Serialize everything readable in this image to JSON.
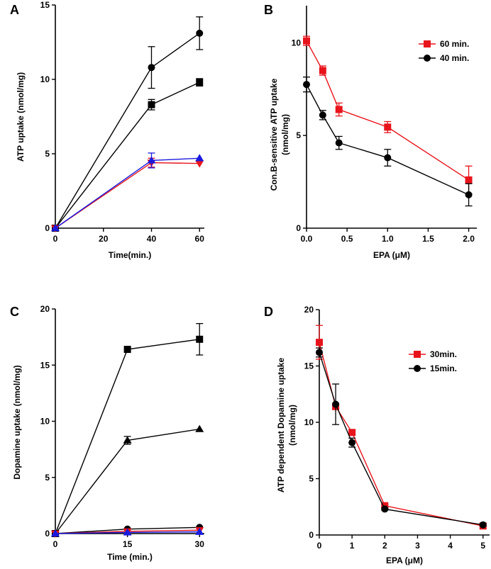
{
  "chart_data": [
    {
      "panel": "A",
      "type": "line",
      "xlabel": "Time(min.)",
      "ylabel": "ATP uptake (nmol/mg)",
      "xlim": [
        0,
        62
      ],
      "ylim": [
        0,
        15
      ],
      "xticks": [
        0,
        20,
        40,
        60
      ],
      "yticks": [
        0,
        5,
        10,
        15
      ],
      "xtick_labels": [
        "0",
        "20",
        "40",
        "60"
      ],
      "ytick_labels": [
        "0",
        "5",
        "10",
        "15"
      ],
      "series": [
        {
          "name": "circle",
          "color": "#000000",
          "marker": "circle",
          "x": [
            0,
            40,
            60
          ],
          "y": [
            0,
            10.8,
            13.1
          ],
          "err": [
            0,
            1.4,
            1.1
          ]
        },
        {
          "name": "square",
          "color": "#000000",
          "marker": "square",
          "x": [
            0,
            40,
            60
          ],
          "y": [
            0,
            8.3,
            9.8
          ],
          "err": [
            0,
            0.35,
            0.25
          ]
        },
        {
          "name": "triangle-down",
          "color": "#e8141b",
          "marker": "triangle-down",
          "x": [
            0,
            40,
            60
          ],
          "y": [
            0,
            4.4,
            4.35
          ],
          "err": [
            0,
            0.3,
            0
          ]
        },
        {
          "name": "triangle",
          "color": "#1a1adf",
          "marker": "triangle",
          "x": [
            0,
            40,
            60
          ],
          "y": [
            0,
            4.55,
            4.7
          ],
          "err": [
            0,
            0.5,
            0
          ]
        }
      ]
    },
    {
      "panel": "B",
      "type": "line",
      "xlabel": "EPA (μM)",
      "ylabel_lines": [
        "Con.B-sensitive ATP uptake",
        "(nmol/mg)"
      ],
      "xlim": [
        0,
        2.1
      ],
      "ylim": [
        0,
        12
      ],
      "xticks": [
        0,
        0.5,
        1.0,
        1.5,
        2.0
      ],
      "yticks": [
        0,
        5,
        10
      ],
      "xtick_labels": [
        "0.0",
        "0.5",
        "1.0",
        "1.5",
        "2.0"
      ],
      "ytick_labels": [
        "0",
        "5",
        "10"
      ],
      "legend": [
        "60 min.",
        "40 min."
      ],
      "series": [
        {
          "name": "60 min.",
          "color": "#e8141b",
          "marker": "square",
          "x": [
            0,
            0.2,
            0.4,
            1.0,
            2.0
          ],
          "y": [
            10.1,
            8.5,
            6.4,
            5.45,
            2.6
          ],
          "err": [
            0.25,
            0.25,
            0.35,
            0.3,
            0.75
          ]
        },
        {
          "name": "40 min.",
          "color": "#000000",
          "marker": "circle",
          "x": [
            0,
            0.2,
            0.4,
            1.0,
            2.0
          ],
          "y": [
            7.75,
            6.1,
            4.6,
            3.8,
            1.8
          ],
          "err": [
            0.4,
            0.25,
            0.35,
            0.45,
            0.6
          ]
        }
      ]
    },
    {
      "panel": "C",
      "type": "line",
      "xlabel": "Time (min.)",
      "ylabel": "Dopamine uptake (nmol/mg)",
      "xlim": [
        0,
        31
      ],
      "ylim": [
        0,
        20
      ],
      "xticks": [
        0,
        15,
        30
      ],
      "yticks": [
        0,
        5,
        10,
        15,
        20
      ],
      "xtick_labels": [
        "0",
        "15",
        "30"
      ],
      "ytick_labels": [
        "0",
        "5",
        "10",
        "15",
        "20"
      ],
      "series": [
        {
          "name": "square",
          "color": "#000000",
          "marker": "square",
          "x": [
            0,
            15,
            30
          ],
          "y": [
            0,
            16.4,
            17.3
          ],
          "err": [
            0,
            0,
            1.4
          ]
        },
        {
          "name": "triangle",
          "color": "#000000",
          "marker": "triangle",
          "x": [
            0,
            15,
            30
          ],
          "y": [
            0,
            8.3,
            9.3
          ],
          "err": [
            0,
            0.35,
            0
          ]
        },
        {
          "name": "circle",
          "color": "#000000",
          "marker": "circle",
          "x": [
            0,
            15,
            30
          ],
          "y": [
            0,
            0.4,
            0.55
          ],
          "err": [
            0,
            0,
            0
          ]
        },
        {
          "name": "red",
          "color": "#e8141b",
          "marker": "triangle-down",
          "x": [
            0,
            15,
            30
          ],
          "y": [
            0,
            0.2,
            0.3
          ],
          "err": [
            0,
            0,
            0
          ]
        },
        {
          "name": "blue",
          "color": "#1a1adf",
          "marker": "triangle",
          "x": [
            0,
            15,
            30
          ],
          "y": [
            0,
            0.1,
            0.15
          ],
          "err": [
            0,
            0,
            0
          ]
        }
      ]
    },
    {
      "panel": "D",
      "type": "line",
      "xlabel": "EPA (μM)",
      "ylabel_lines": [
        "ATP dependent Dopamine  uptake",
        "(nmol/mg)"
      ],
      "xlim": [
        0,
        5.2
      ],
      "ylim": [
        0,
        20
      ],
      "xticks": [
        0,
        1,
        2,
        3,
        4,
        5
      ],
      "yticks": [
        0,
        5,
        10,
        15,
        20
      ],
      "xtick_labels": [
        "0",
        "1",
        "2",
        "3",
        "4",
        "5"
      ],
      "ytick_labels": [
        "0",
        "5",
        "10",
        "15",
        "20"
      ],
      "legend": [
        "30min.",
        "15min."
      ],
      "series": [
        {
          "name": "30min.",
          "color": "#e8141b",
          "marker": "square",
          "x": [
            0,
            0.5,
            1,
            2,
            5
          ],
          "y": [
            17.1,
            11.4,
            9.1,
            2.6,
            0.8
          ],
          "err": [
            1.5,
            0.2,
            0.2,
            0.1,
            0
          ]
        },
        {
          "name": "15min.",
          "color": "#000000",
          "marker": "circle",
          "x": [
            0,
            0.5,
            1,
            2,
            5
          ],
          "y": [
            16.2,
            11.6,
            8.2,
            2.3,
            0.9
          ],
          "err": [
            0.4,
            1.8,
            0.4,
            0.1,
            0.1
          ]
        }
      ]
    }
  ]
}
